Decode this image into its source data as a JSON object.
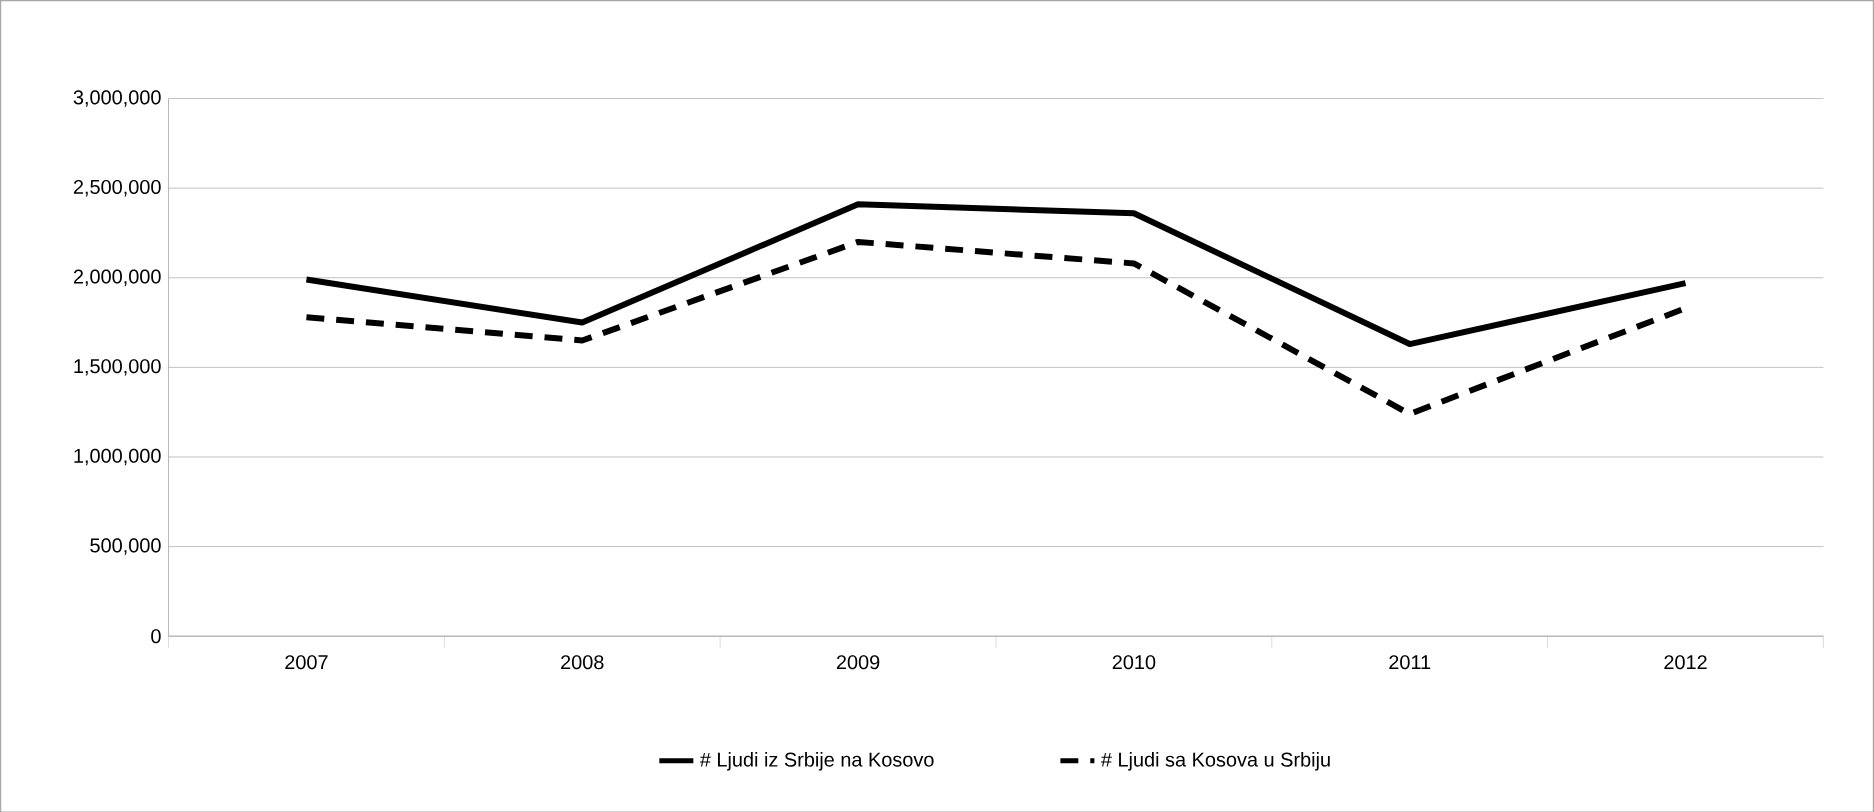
{
  "chart_data": {
    "type": "line",
    "categories": [
      "2007",
      "2008",
      "2009",
      "2010",
      "2011",
      "2012"
    ],
    "series": [
      {
        "name": "# Ljudi iz Srbije na Kosovo",
        "color": "#000000",
        "line_style": "solid",
        "values": [
          1990000,
          1750000,
          2410000,
          2360000,
          1630000,
          1970000
        ]
      },
      {
        "name": "# Ljudi sa Kosova u Srbiju",
        "color": "#000000",
        "line_style": "dashed",
        "values": [
          1780000,
          1650000,
          2200000,
          2080000,
          1240000,
          1830000
        ]
      }
    ],
    "ylim": [
      0,
      3000000
    ],
    "yticks": [
      {
        "value": 0,
        "label": "0"
      },
      {
        "value": 500000,
        "label": "500,000"
      },
      {
        "value": 1000000,
        "label": "1,000,000"
      },
      {
        "value": 1500000,
        "label": "1,500,000"
      },
      {
        "value": 2000000,
        "label": "2,000,000"
      },
      {
        "value": 2500000,
        "label": "2,500,000"
      },
      {
        "value": 3000000,
        "label": "3,000,000"
      }
    ],
    "grid": "y",
    "legend": "bottom",
    "marker": "none"
  }
}
